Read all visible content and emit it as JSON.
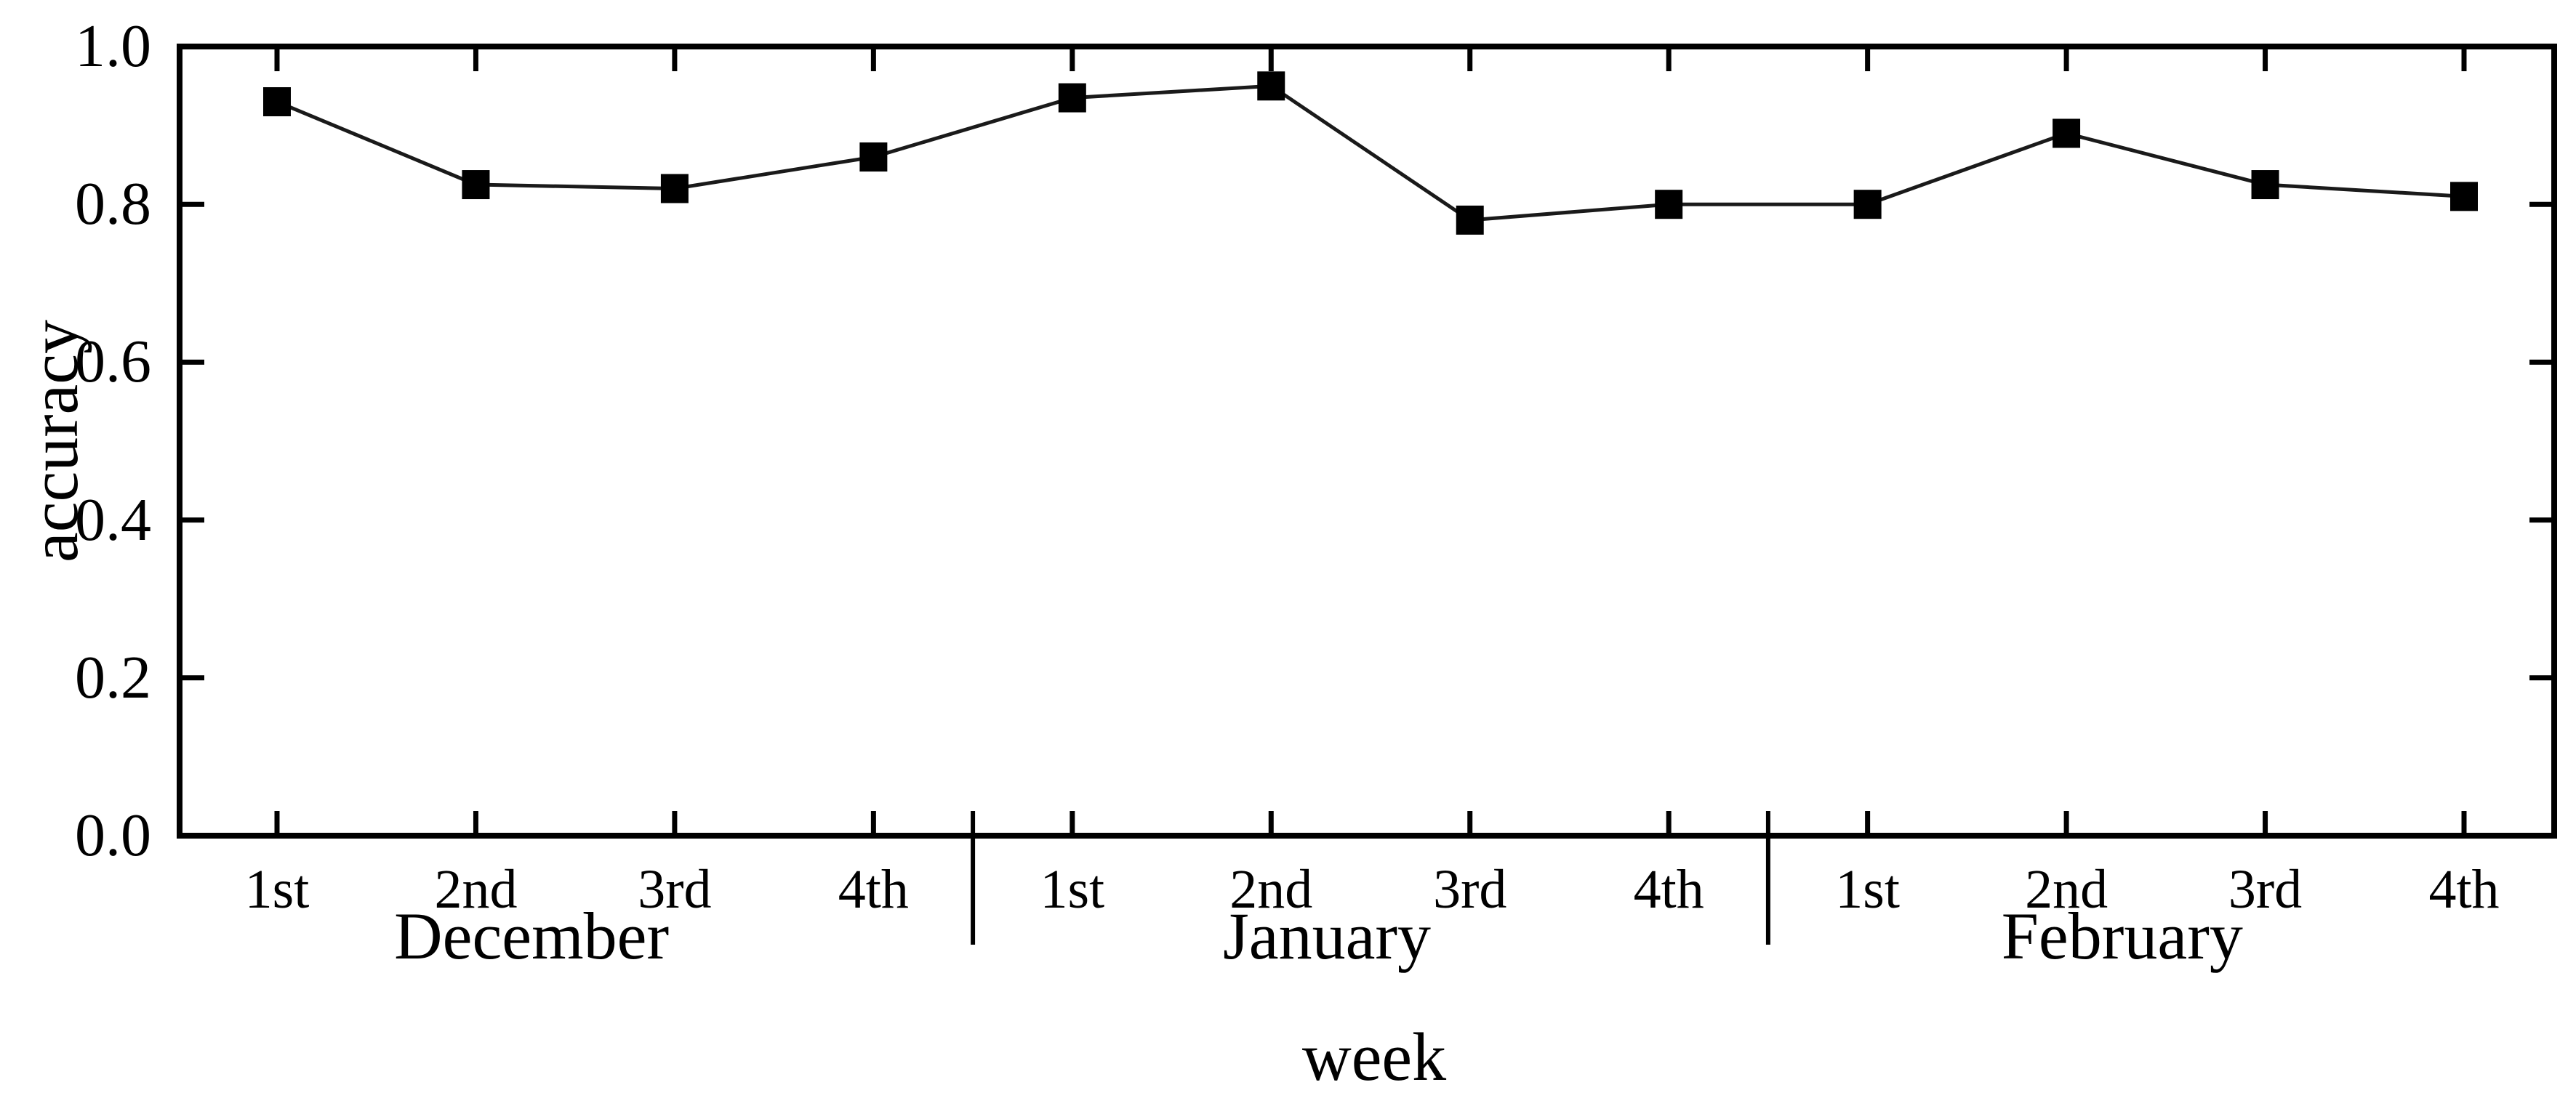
{
  "chart_data": {
    "type": "line",
    "title": "",
    "xlabel": "week",
    "ylabel": "accuracy",
    "ylim": [
      0.0,
      1.0
    ],
    "ytick_values": [
      0.0,
      0.2,
      0.4,
      0.6,
      0.8,
      1.0
    ],
    "ytick_labels": [
      "0.0",
      "0.2",
      "0.4",
      "0.6",
      "0.8",
      "1.0"
    ],
    "categories": [
      "1st",
      "2nd",
      "3rd",
      "4th",
      "1st",
      "2nd",
      "3rd",
      "4th",
      "1st",
      "2nd",
      "3rd",
      "4th"
    ],
    "month_groups": [
      {
        "label": "December",
        "start_index": 0,
        "end_index": 3
      },
      {
        "label": "January",
        "start_index": 4,
        "end_index": 7
      },
      {
        "label": "February",
        "start_index": 8,
        "end_index": 11
      }
    ],
    "series": [
      {
        "name": "accuracy",
        "values": [
          0.93,
          0.825,
          0.82,
          0.86,
          0.935,
          0.95,
          0.78,
          0.8,
          0.8,
          0.89,
          0.825,
          0.81
        ]
      }
    ],
    "marker": "filled-square",
    "legend_position": "none",
    "grid": false,
    "line_color": "#1a1a1a",
    "marker_color": "#000000",
    "axis_color": "#000000",
    "background_color": "#ffffff"
  }
}
